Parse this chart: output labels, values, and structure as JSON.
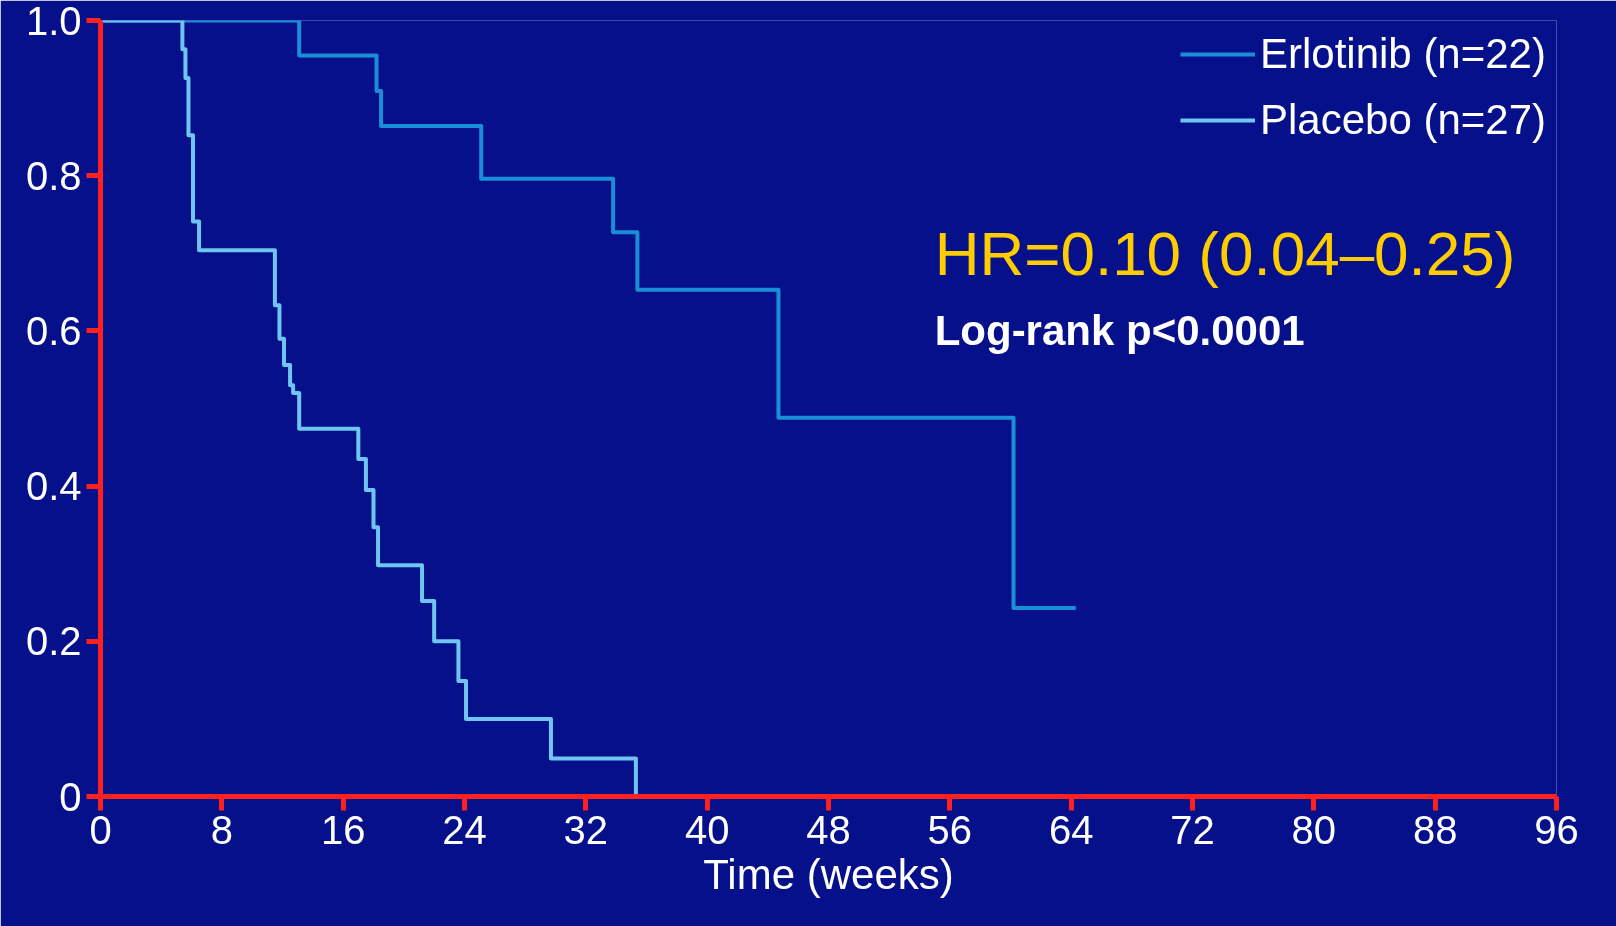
{
  "chart_data": {
    "type": "step",
    "xlabel": "Time (weeks)",
    "xlim": [
      0,
      96
    ],
    "xticks": [
      0,
      8,
      16,
      24,
      32,
      40,
      48,
      56,
      64,
      72,
      80,
      88,
      96
    ],
    "ylim": [
      0,
      1.0
    ],
    "yticks": [
      0,
      0.2,
      0.4,
      0.6,
      0.8,
      {
        "value": 1.0,
        "label": "1.0"
      }
    ],
    "legend": "top right",
    "grid": false,
    "annotations": [
      "HR=0.10 (0.04–0.25)",
      "Log-rank p<0.0001"
    ],
    "series": [
      {
        "name": "Erlotinib (n=22)",
        "color": "#1a8fd8",
        "x": [
          0,
          13.1,
          18.2,
          18.5,
          25.1,
          33.8,
          35.4,
          44.7,
          60.2,
          64.3
        ],
        "values": [
          1.0,
          0.955,
          0.909,
          0.864,
          0.796,
          0.727,
          0.653,
          0.488,
          0.243,
          0.243
        ]
      },
      {
        "name": "Placebo (n=27)",
        "color": "#6ec6f0",
        "x": [
          0,
          5.4,
          5.6,
          5.8,
          6.1,
          6.5,
          11.5,
          11.8,
          12.1,
          12.5,
          12.7,
          13.1,
          17.0,
          17.5,
          18.0,
          18.3,
          21.2,
          22.0,
          23.6,
          24.1,
          29.7,
          35.3
        ],
        "values": [
          1.0,
          0.963,
          0.926,
          0.852,
          0.741,
          0.704,
          0.633,
          0.59,
          0.556,
          0.53,
          0.52,
          0.474,
          0.435,
          0.395,
          0.347,
          0.298,
          0.252,
          0.2,
          0.149,
          0.1,
          0.049,
          0.0
        ]
      }
    ]
  }
}
